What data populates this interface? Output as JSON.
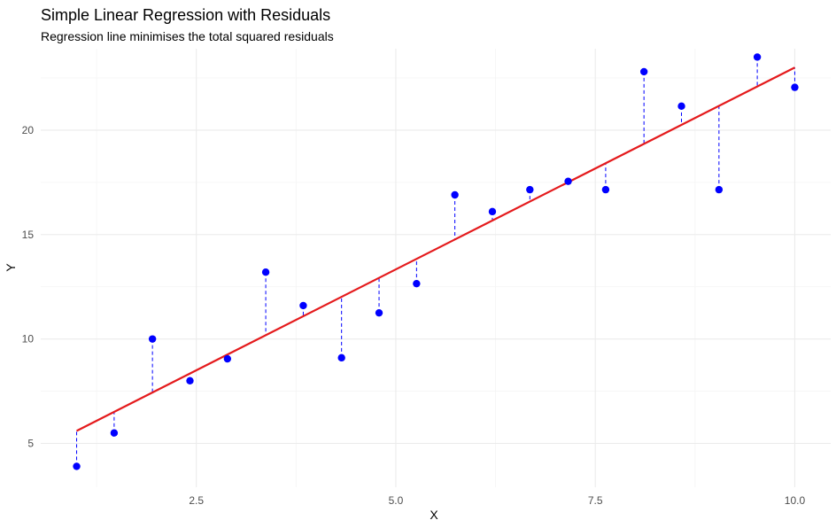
{
  "chart_data": {
    "type": "scatter",
    "title": "Simple Linear Regression with Residuals",
    "subtitle": "Regression line minimises the total squared residuals",
    "xlabel": "X",
    "ylabel": "Y",
    "xlim": [
      0.55,
      10.45
    ],
    "ylim": [
      2.9,
      23.9
    ],
    "x_ticks": [
      2.5,
      5.0,
      7.5,
      10.0
    ],
    "x_tick_labels": [
      "2.5",
      "5.0",
      "7.5",
      "10.0"
    ],
    "y_ticks": [
      5,
      10,
      15,
      20
    ],
    "y_tick_labels": [
      "5",
      "10",
      "15",
      "20"
    ],
    "grid": true,
    "points": {
      "x": [
        1.0,
        1.47,
        1.95,
        2.42,
        2.89,
        3.37,
        3.84,
        4.32,
        4.79,
        5.26,
        5.74,
        6.21,
        6.68,
        7.16,
        7.63,
        8.11,
        8.58,
        9.05,
        9.53,
        10.0
      ],
      "y": [
        3.9,
        5.5,
        10.0,
        8.0,
        9.05,
        13.2,
        11.6,
        9.1,
        11.25,
        12.65,
        16.9,
        16.1,
        17.15,
        17.55,
        17.15,
        22.8,
        21.15,
        17.15,
        23.5,
        22.05
      ],
      "color": "#0000ff"
    },
    "fit_line": {
      "x": [
        1.0,
        10.0
      ],
      "y": [
        5.6,
        23.0
      ],
      "color": "#e41a1c"
    },
    "residual_color": "#0000ff"
  }
}
